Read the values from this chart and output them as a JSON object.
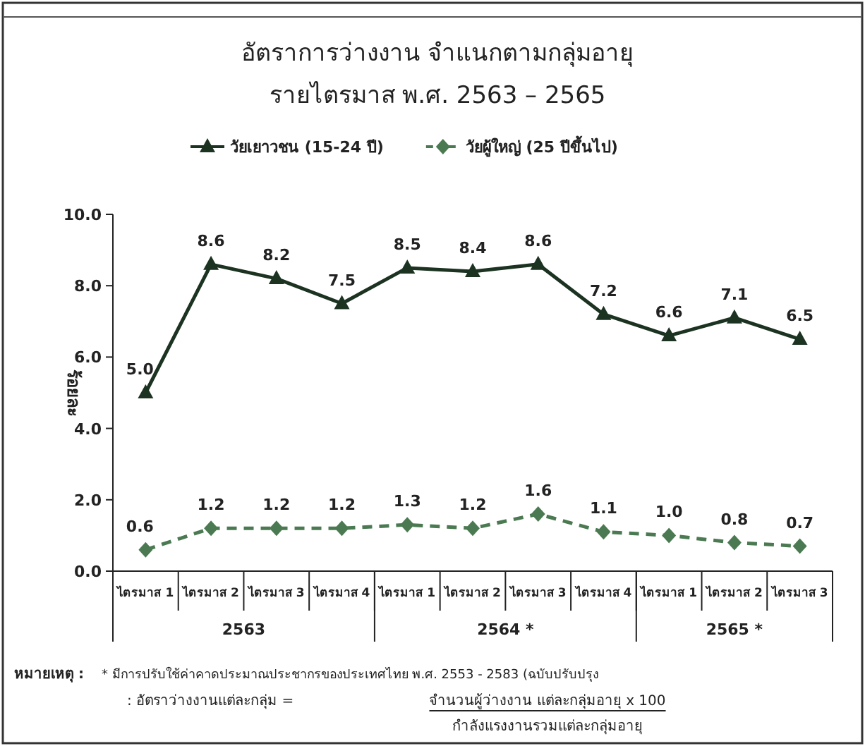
{
  "chart_data": {
    "type": "line",
    "title": "อัตราการว่างงาน จำแนกตามกลุ่มอายุ",
    "subtitle": "รายไตรมาส พ.ศ. 2563 – 2565",
    "ylabel": "ร้อยละ",
    "categories": [
      "ไตรมาส 1",
      "ไตรมาส 2",
      "ไตรมาส 3",
      "ไตรมาส 4",
      "ไตรมาส 1",
      "ไตรมาส 2",
      "ไตรมาส 3",
      "ไตรมาส 4",
      "ไตรมาส 1",
      "ไตรมาส 2",
      "ไตรมาส 3"
    ],
    "series": [
      {
        "name": "วัยเยาวชน (15-24 ปี)",
        "color": "#1c3321",
        "marker": "triangle",
        "line_style": "solid",
        "values": [
          5.0,
          8.6,
          8.2,
          7.5,
          8.5,
          8.4,
          8.6,
          7.2,
          6.6,
          7.1,
          6.5
        ],
        "value_labels": [
          "5.0",
          "8.6",
          "8.2",
          "7.5",
          "8.5",
          "8.4",
          "8.6",
          "7.2",
          "6.6",
          "7.1",
          "6.5"
        ]
      },
      {
        "name": "วัยผู้ใหญ่ (25 ปีขึ้นไป)",
        "color": "#4b7a52",
        "marker": "diamond",
        "line_style": "dashed",
        "values": [
          0.6,
          1.2,
          1.2,
          1.2,
          1.3,
          1.2,
          1.6,
          1.1,
          1.0,
          0.8,
          0.7
        ],
        "value_labels": [
          "0.6",
          "1.2",
          "1.2",
          "1.2",
          "1.3",
          "1.2",
          "1.6",
          "1.1",
          "1.0",
          "0.8",
          "0.7"
        ]
      }
    ],
    "ylim": [
      0,
      10
    ],
    "yticks": [
      {
        "value": 0,
        "label": "0.0"
      },
      {
        "value": 2,
        "label": "2.0"
      },
      {
        "value": 4,
        "label": "4.0"
      },
      {
        "value": 6,
        "label": "6.0"
      },
      {
        "value": 8,
        "label": "8.0"
      },
      {
        "value": 10,
        "label": "10.0"
      }
    ],
    "legend": "top",
    "annotations": [
      "2563",
      "2564 *",
      "2565 *",
      "หมายเหตุ :",
      "* มีการปรับใช้ค่าคาดประมาณประชากรของประเทศไทย พ.ศ. 2553 - 2583 (ฉบับปรับปรุง",
      ": อัตราว่างงานแต่ละกลุ่ม =",
      "จำนวนผู้ว่างงาน แต่ละกลุ่มอายุ x 100",
      "กำลังแรงงานรวมแต่ละกลุ่มอายุ"
    ]
  }
}
